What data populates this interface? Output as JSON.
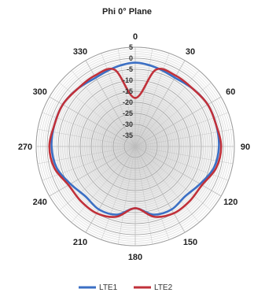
{
  "chart_data": {
    "type": "polar-line",
    "title": "Phi 0° Plane",
    "angle_ticks": [
      0,
      30,
      60,
      90,
      120,
      150,
      180,
      210,
      240,
      270,
      300,
      330
    ],
    "angle_labels": [
      "0",
      "30",
      "60",
      "90",
      "120",
      "150",
      "180",
      "210",
      "240",
      "270",
      "300",
      "330"
    ],
    "radial_axis": {
      "min": -40,
      "max": 5,
      "ticks": [
        5,
        0,
        -5,
        -10,
        -15,
        -20,
        -25,
        -30,
        -35
      ],
      "labels": [
        "5",
        "0",
        "-5",
        "-10",
        "-15",
        "-20",
        "-25",
        "-30",
        "-35"
      ]
    },
    "angle_direction": "clockwise",
    "zero_at": "top",
    "grid": true,
    "legend_position": "bottom",
    "series": [
      {
        "name": "LTE1",
        "color": "#3b6fc4",
        "angles": [
          0,
          15,
          30,
          45,
          60,
          75,
          90,
          105,
          120,
          135,
          150,
          165,
          180,
          195,
          210,
          225,
          240,
          255,
          270,
          285,
          300,
          315,
          330,
          345
        ],
        "values": [
          -2,
          -3,
          -4,
          -3,
          -2,
          -2,
          -2,
          -3,
          -6,
          -8,
          -7,
          -8,
          -12,
          -8,
          -7,
          -8,
          -6,
          -3,
          -2,
          -2,
          -2,
          -3,
          -4,
          -3
        ]
      },
      {
        "name": "LTE2",
        "color": "#c0313a",
        "angles": [
          0,
          15,
          30,
          45,
          60,
          75,
          90,
          105,
          120,
          135,
          150,
          165,
          180,
          195,
          210,
          225,
          240,
          255,
          270,
          285,
          300,
          315,
          330,
          345
        ],
        "values": [
          -18,
          -4,
          -3,
          -3,
          -2,
          -2,
          -1,
          -2,
          -5,
          -5,
          -5,
          -7,
          -12,
          -7,
          -5,
          -5,
          -5,
          -2,
          -1,
          -2,
          -2,
          -3,
          -3,
          -4
        ]
      }
    ]
  }
}
